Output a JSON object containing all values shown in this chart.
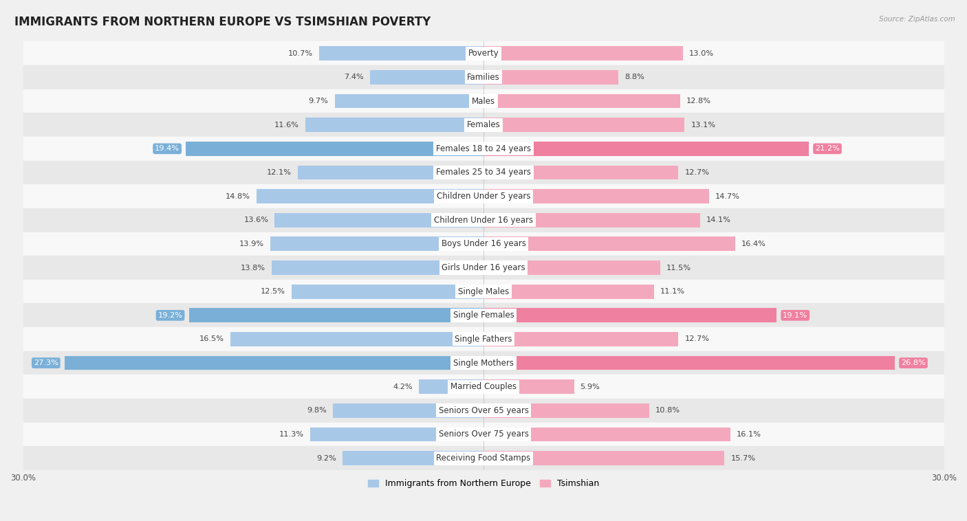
{
  "title": "IMMIGRANTS FROM NORTHERN EUROPE VS TSIMSHIAN POVERTY",
  "source": "Source: ZipAtlas.com",
  "categories": [
    "Poverty",
    "Families",
    "Males",
    "Females",
    "Females 18 to 24 years",
    "Females 25 to 34 years",
    "Children Under 5 years",
    "Children Under 16 years",
    "Boys Under 16 years",
    "Girls Under 16 years",
    "Single Males",
    "Single Females",
    "Single Fathers",
    "Single Mothers",
    "Married Couples",
    "Seniors Over 65 years",
    "Seniors Over 75 years",
    "Receiving Food Stamps"
  ],
  "left_values": [
    10.7,
    7.4,
    9.7,
    11.6,
    19.4,
    12.1,
    14.8,
    13.6,
    13.9,
    13.8,
    12.5,
    19.2,
    16.5,
    27.3,
    4.2,
    9.8,
    11.3,
    9.2
  ],
  "right_values": [
    13.0,
    8.8,
    12.8,
    13.1,
    21.2,
    12.7,
    14.7,
    14.1,
    16.4,
    11.5,
    11.1,
    19.1,
    12.7,
    26.8,
    5.9,
    10.8,
    16.1,
    15.7
  ],
  "left_color": "#a8c8e8",
  "right_color": "#f4a8be",
  "left_highlight_color": "#7ab0d8",
  "right_highlight_color": "#f080a0",
  "highlight_rows": [
    4,
    11,
    13
  ],
  "left_label": "Immigrants from Northern Europe",
  "right_label": "Tsimshian",
  "max_value": 30.0,
  "background_color": "#f0f0f0",
  "row_bg_light": "#f8f8f8",
  "row_bg_dark": "#e8e8e8",
  "bar_height": 0.6,
  "title_fontsize": 12,
  "label_fontsize": 8.5,
  "value_fontsize": 8.2,
  "tick_fontsize": 8.5
}
